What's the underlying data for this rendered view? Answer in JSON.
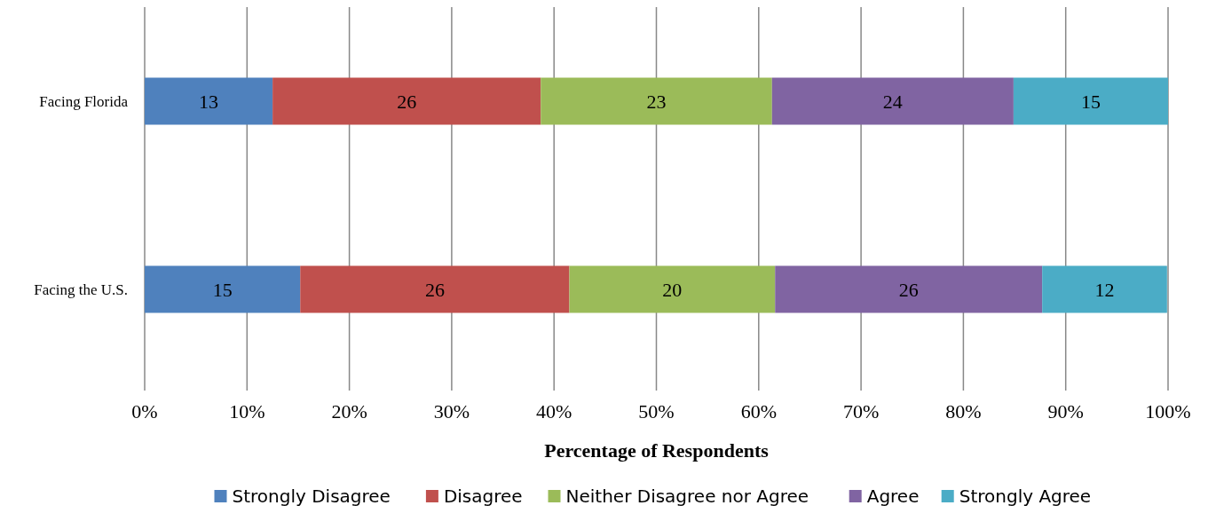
{
  "chart_data": {
    "type": "bar",
    "orientation": "horizontal",
    "stacked": true,
    "xlabel": "Percentage of Respondents",
    "categories": [
      "Facing Florida",
      "Facing the U.S."
    ],
    "series": [
      {
        "name": "Strongly Disagree",
        "color": "#4f81bd",
        "values": [
          12.5,
          15.2
        ],
        "value_labels": [
          "13",
          "15"
        ]
      },
      {
        "name": "Disagree",
        "color": "#c0504d",
        "values": [
          26.2,
          26.3
        ],
        "value_labels": [
          "26",
          "26"
        ]
      },
      {
        "name": "Neither Disagree nor Agree",
        "color": "#9bbb59",
        "values": [
          22.6,
          20.1
        ],
        "value_labels": [
          "23",
          "20"
        ]
      },
      {
        "name": "Agree",
        "color": "#8064a2",
        "values": [
          23.6,
          26.1
        ],
        "value_labels": [
          "24",
          "26"
        ]
      },
      {
        "name": "Strongly Agree",
        "color": "#4bacc6",
        "values": [
          15.1,
          12.2
        ],
        "value_labels": [
          "15",
          "12"
        ]
      }
    ],
    "xlim": [
      0,
      100
    ],
    "xticks": [
      {
        "value": 0,
        "label": "0%"
      },
      {
        "value": 10,
        "label": "10%"
      },
      {
        "value": 20,
        "label": "20%"
      },
      {
        "value": 30,
        "label": "30%"
      },
      {
        "value": 40,
        "label": "40%"
      },
      {
        "value": 50,
        "label": "50%"
      },
      {
        "value": 60,
        "label": "60%"
      },
      {
        "value": 70,
        "label": "70%"
      },
      {
        "value": 80,
        "label": "80%"
      },
      {
        "value": 90,
        "label": "90%"
      },
      {
        "value": 100,
        "label": "100%"
      }
    ],
    "grid": "x",
    "legend": "bottom"
  }
}
